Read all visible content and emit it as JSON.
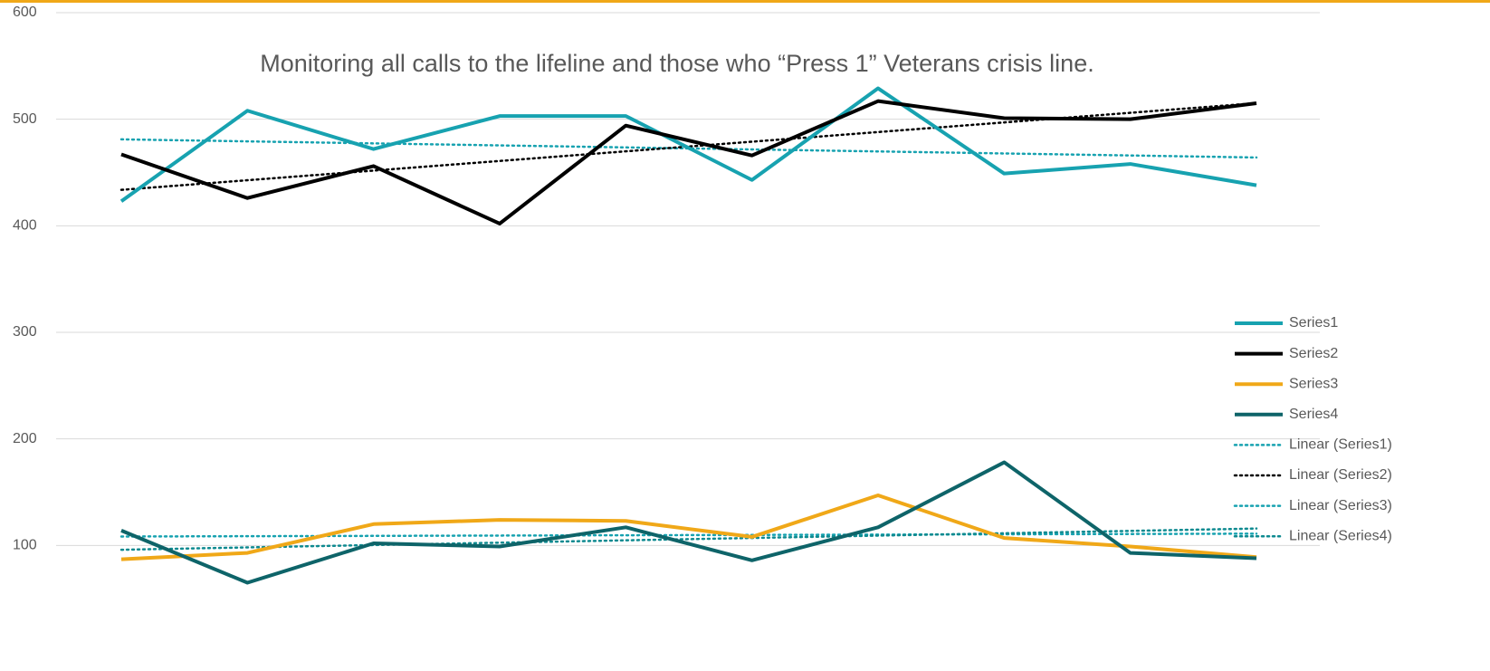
{
  "chart_data": {
    "type": "line",
    "title": "Monitoring all calls to the lifeline and those who “Press 1” Veterans crisis line.",
    "categories": [
      null,
      null,
      null,
      null,
      null,
      null,
      null,
      null,
      null,
      null
    ],
    "series": [
      {
        "name": "Series1",
        "color": "#17a2b0",
        "values": [
          423,
          508,
          472,
          503,
          503,
          443,
          529,
          449,
          458,
          438
        ]
      },
      {
        "name": "Series2",
        "color": "#000000",
        "values": [
          467,
          426,
          456,
          402,
          494,
          466,
          517,
          501,
          500,
          515
        ]
      },
      {
        "name": "Series3",
        "color": "#f0a818",
        "values": [
          87,
          93,
          120,
          124,
          123,
          108,
          147,
          107,
          99,
          89
        ]
      },
      {
        "name": "Series4",
        "color": "#0e6469",
        "values": [
          114,
          65,
          102,
          99,
          117,
          86,
          117,
          178,
          93,
          88
        ]
      }
    ],
    "trendlines": [
      {
        "name": "Linear (Series1)",
        "series": 0,
        "color": "#17a2b0"
      },
      {
        "name": "Linear (Series2)",
        "series": 1,
        "color": "#000000"
      },
      {
        "name": "Linear (Series3)",
        "series": 2,
        "color": "#17a2b0"
      },
      {
        "name": "Linear (Series4)",
        "series": 3,
        "color": "#0e8a90"
      }
    ],
    "ylim": [
      0,
      600
    ],
    "yticks": [
      100,
      200,
      300,
      400,
      500,
      600
    ],
    "grid": true,
    "legend": "right"
  }
}
